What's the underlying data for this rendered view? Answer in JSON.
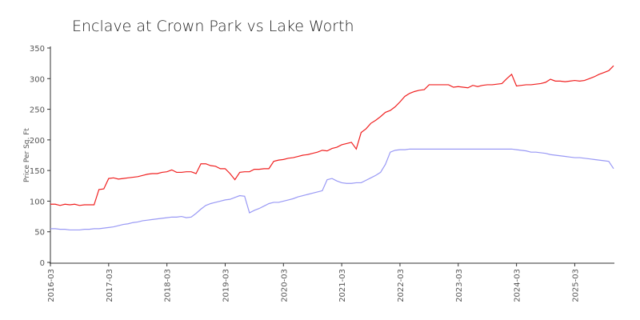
{
  "chart_data": {
    "type": "line",
    "title": "Enclave at Crown Park vs Lake Worth",
    "y_label": "Price Per Sq. Ft",
    "x": [
      "2016-03",
      "2016-04",
      "2016-05",
      "2016-06",
      "2016-07",
      "2016-08",
      "2016-09",
      "2016-10",
      "2016-11",
      "2016-12",
      "2017-01",
      "2017-02",
      "2017-03",
      "2017-04",
      "2017-05",
      "2017-06",
      "2017-07",
      "2017-08",
      "2017-09",
      "2017-10",
      "2017-11",
      "2017-12",
      "2018-01",
      "2018-02",
      "2018-03",
      "2018-04",
      "2018-05",
      "2018-06",
      "2018-07",
      "2018-08",
      "2018-09",
      "2018-10",
      "2018-11",
      "2018-12",
      "2019-01",
      "2019-02",
      "2019-03",
      "2019-04",
      "2019-05",
      "2019-06",
      "2019-07",
      "2019-08",
      "2019-09",
      "2019-10",
      "2019-11",
      "2019-12",
      "2020-01",
      "2020-02",
      "2020-03",
      "2020-04",
      "2020-05",
      "2020-06",
      "2020-07",
      "2020-08",
      "2020-09",
      "2020-10",
      "2020-11",
      "2020-12",
      "2021-01",
      "2021-02",
      "2021-03",
      "2021-04",
      "2021-05",
      "2021-06",
      "2021-07",
      "2021-08",
      "2021-09",
      "2021-10",
      "2021-11",
      "2021-12",
      "2022-01",
      "2022-02",
      "2022-03",
      "2022-04",
      "2022-05",
      "2022-06",
      "2022-07",
      "2022-08",
      "2022-09",
      "2022-10",
      "2022-11",
      "2022-12",
      "2023-01",
      "2023-02",
      "2023-03",
      "2023-04",
      "2023-05",
      "2023-06",
      "2023-07",
      "2023-08",
      "2023-09",
      "2023-10",
      "2023-11",
      "2023-12",
      "2024-01",
      "2024-02",
      "2024-03",
      "2024-04",
      "2024-05",
      "2024-06",
      "2024-07",
      "2024-08",
      "2024-09",
      "2024-10",
      "2024-11",
      "2024-12",
      "2025-01",
      "2025-02",
      "2025-03",
      "2025-04",
      "2025-05",
      "2025-06",
      "2025-07",
      "2025-08",
      "2025-09",
      "2025-10",
      "2025-11"
    ],
    "series": [
      {
        "color": "#f02020",
        "values": [
          95,
          95,
          93,
          95,
          94,
          95,
          93,
          94,
          94,
          94,
          119,
          120,
          137,
          138,
          136,
          137,
          138,
          139,
          140,
          142,
          144,
          145,
          145,
          147,
          148,
          151,
          147,
          147,
          148,
          148,
          145,
          161,
          161,
          158,
          157,
          153,
          153,
          145,
          135,
          147,
          148,
          148,
          152,
          152,
          153,
          153,
          165,
          167,
          168,
          170,
          171,
          173,
          175,
          176,
          178,
          180,
          183,
          182,
          186,
          188,
          192,
          194,
          196,
          185,
          212,
          218,
          227,
          232,
          238,
          245,
          248,
          254,
          262,
          271,
          276,
          279,
          281,
          282,
          290,
          290,
          290,
          290,
          290,
          286,
          287,
          286,
          285,
          289,
          287,
          289,
          290,
          290,
          291,
          292,
          300,
          307,
          288,
          289,
          290,
          290,
          291,
          292,
          294,
          299,
          296,
          296,
          295,
          296,
          297,
          296,
          297,
          300,
          303,
          307,
          310,
          313,
          321
        ]
      },
      {
        "color": "#9999f5",
        "values": [
          55,
          55,
          54,
          54,
          53,
          53,
          53,
          54,
          54,
          55,
          55,
          56,
          57,
          58,
          60,
          62,
          63,
          65,
          66,
          68,
          69,
          70,
          71,
          72,
          73,
          74,
          74,
          75,
          73,
          74,
          80,
          87,
          93,
          96,
          98,
          100,
          102,
          103,
          106,
          109,
          108,
          81,
          85,
          88,
          92,
          96,
          98,
          98,
          100,
          102,
          104,
          107,
          109,
          111,
          113,
          115,
          117,
          135,
          137,
          133,
          130,
          129,
          129,
          130,
          130,
          134,
          138,
          142,
          147,
          160,
          180,
          183,
          184,
          184,
          185,
          185,
          185,
          185,
          185,
          185,
          185,
          185,
          185,
          185,
          185,
          185,
          185,
          185,
          185,
          185,
          185,
          185,
          185,
          185,
          185,
          185,
          184,
          183,
          182,
          180,
          180,
          179,
          178,
          176,
          175,
          174,
          173,
          172,
          171,
          171,
          170,
          169,
          168,
          167,
          166,
          165,
          153
        ]
      }
    ],
    "xticks": [
      "2016-03",
      "2017-03",
      "2018-03",
      "2019-03",
      "2020-03",
      "2021-03",
      "2022-03",
      "2023-03",
      "2024-03",
      "2025-03"
    ],
    "ylim": [
      0,
      350
    ],
    "yticks": [
      0,
      50,
      100,
      150,
      200,
      250,
      300,
      350
    ]
  }
}
